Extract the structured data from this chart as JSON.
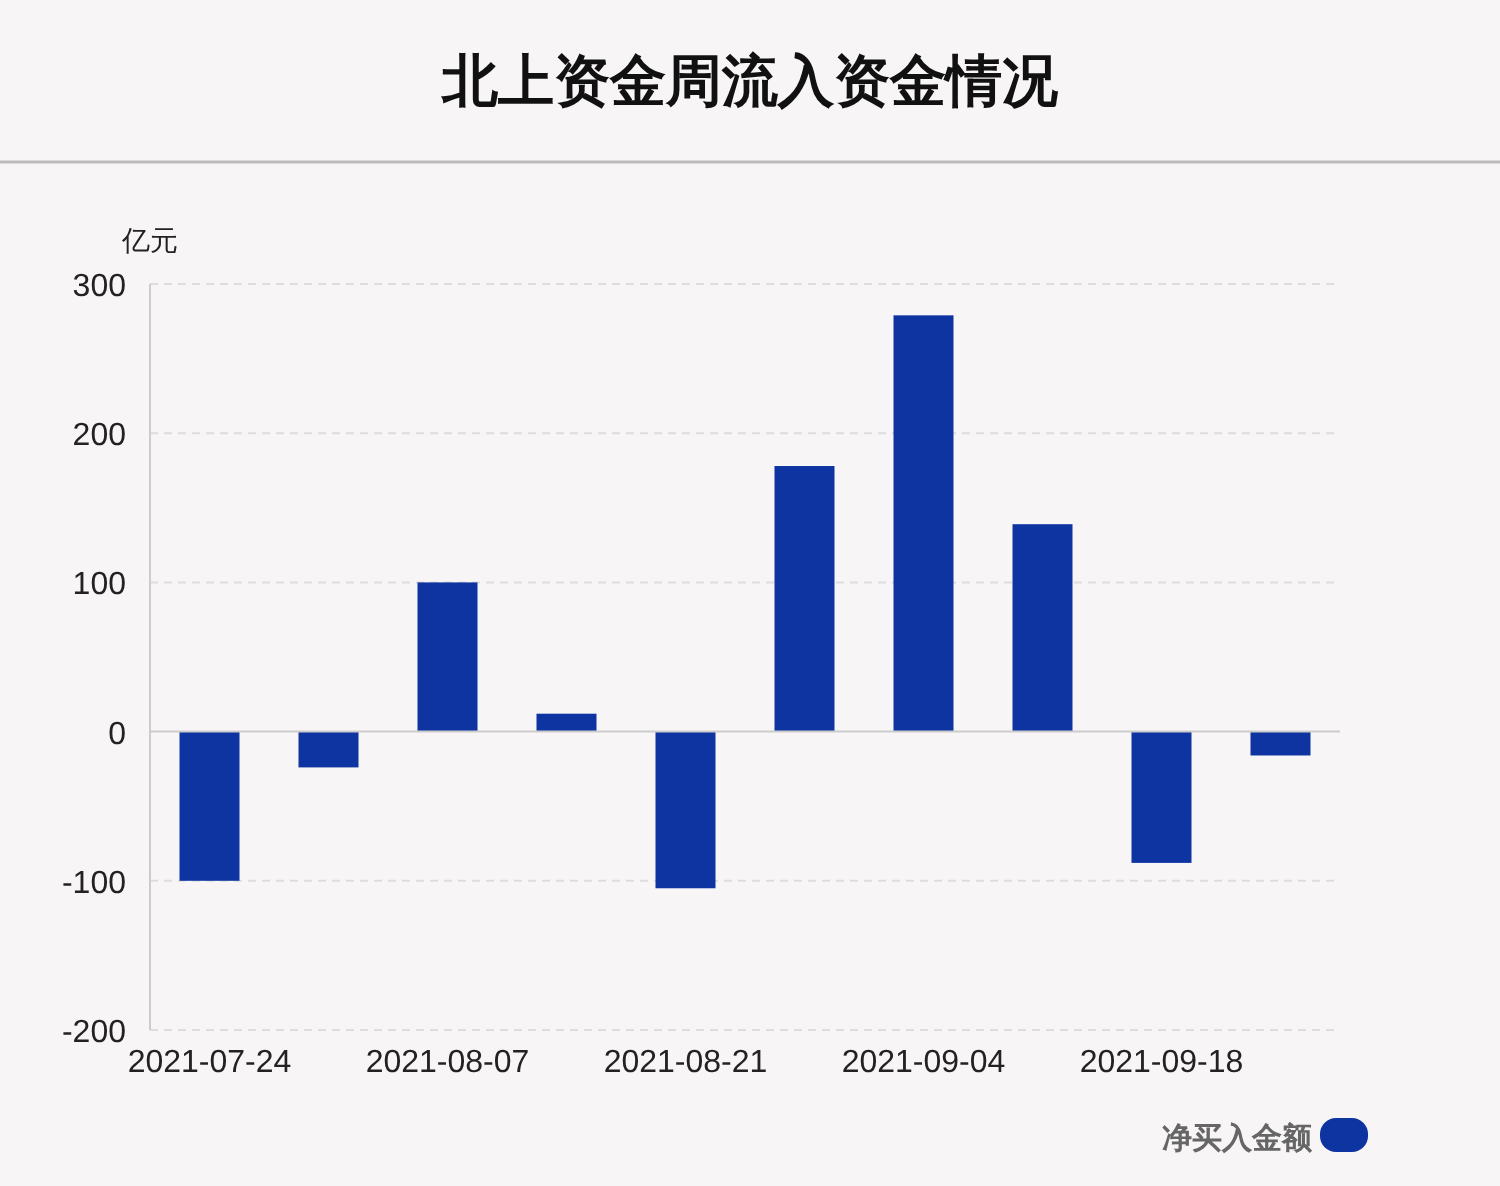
{
  "chart_data": {
    "type": "bar",
    "title": "北上资金周流入资金情况",
    "ylabel": "亿元",
    "categories": [
      "2021-07-24",
      null,
      "2021-08-07",
      null,
      "2021-08-21",
      null,
      "2021-09-04",
      null,
      "2021-09-18",
      null
    ],
    "series": [
      {
        "name": "净买入金额",
        "color": "#0d34a0",
        "values": [
          -100,
          -24,
          100,
          12,
          -105,
          178,
          279,
          139,
          -88,
          -16
        ]
      }
    ],
    "ylim": [
      -200,
      300
    ],
    "yticks": [
      -200,
      -100,
      0,
      100,
      200,
      300
    ],
    "grid": "y",
    "legend": "bottom right"
  }
}
